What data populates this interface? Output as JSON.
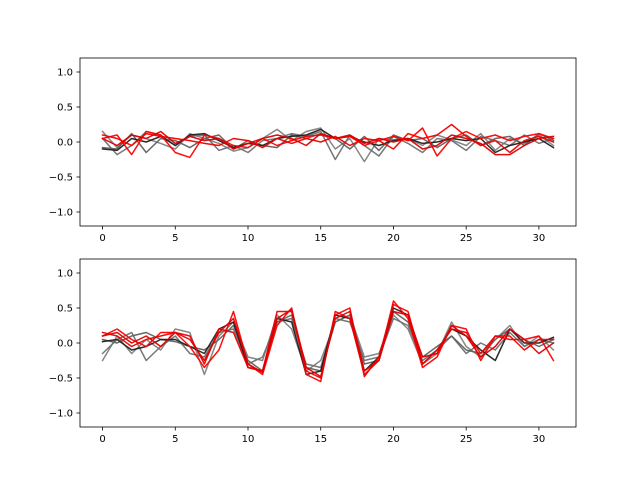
{
  "chart_data": [
    {
      "type": "line",
      "title": "",
      "xlabel": "",
      "ylabel": "",
      "xlim": [
        -1.55,
        32.55
      ],
      "ylim": [
        -1.2,
        1.2
      ],
      "xticks": [
        0,
        5,
        10,
        15,
        20,
        25,
        30
      ],
      "yticks": [
        -1.0,
        -0.5,
        0.0,
        0.5,
        1.0
      ],
      "x": [
        0,
        1,
        2,
        3,
        4,
        5,
        6,
        7,
        8,
        9,
        10,
        11,
        12,
        13,
        14,
        15,
        16,
        17,
        18,
        19,
        20,
        21,
        22,
        23,
        24,
        25,
        26,
        27,
        28,
        29,
        30,
        31
      ],
      "series": [
        {
          "color": "#808080",
          "values": [
            0.15,
            -0.08,
            0.1,
            0.05,
            -0.02,
            -0.1,
            0.12,
            0.05,
            -0.02,
            -0.13,
            -0.08,
            0.05,
            0.18,
            0.02,
            0.15,
            0.2,
            -0.1,
            0.05,
            -0.28,
            0.05,
            0.03,
            0.05,
            -0.05,
            0.1,
            0.03,
            -0.05,
            0.12,
            -0.12,
            0.05,
            -0.02,
            0.1,
            -0.05
          ]
        },
        {
          "color": "#707070",
          "values": [
            0.05,
            -0.18,
            -0.05,
            0.15,
            0.1,
            -0.05,
            0.08,
            0.1,
            -0.12,
            -0.05,
            -0.15,
            0.02,
            0.05,
            0.12,
            0.08,
            0.15,
            -0.25,
            0.1,
            -0.05,
            -0.2,
            0.08,
            -0.02,
            -0.15,
            0.05,
            0.02,
            -0.12,
            0.08,
            0.02,
            -0.05,
            0.1,
            -0.02,
            0.05
          ]
        },
        {
          "color": "#606060",
          "values": [
            -0.08,
            -0.1,
            0.12,
            -0.15,
            0.05,
            0.02,
            -0.08,
            0.05,
            0.1,
            -0.1,
            0.02,
            -0.05,
            -0.08,
            0.1,
            0.05,
            0.12,
            0.05,
            -0.1,
            0.08,
            -0.12,
            0.1,
            0.02,
            0.05,
            -0.08,
            0.05,
            0.1,
            -0.05,
            0.05,
            0.08,
            -0.05,
            0.12,
            0.02
          ]
        },
        {
          "color": "#202020",
          "values": [
            -0.1,
            -0.12,
            0.05,
            0.0,
            0.08,
            -0.05,
            0.1,
            0.12,
            0.02,
            -0.08,
            -0.02,
            -0.05,
            0.05,
            0.08,
            0.1,
            0.18,
            0.05,
            0.08,
            0.0,
            -0.05,
            0.02,
            0.05,
            -0.02,
            0.0,
            0.05,
            0.02,
            0.05,
            -0.15,
            -0.05,
            0.0,
            0.05,
            -0.08
          ]
        },
        {
          "color": "#ff0000",
          "values": [
            0.05,
            0.1,
            -0.18,
            0.15,
            0.1,
            -0.15,
            -0.22,
            0.1,
            0.05,
            -0.05,
            -0.08,
            0.05,
            -0.05,
            0.02,
            0.08,
            0.1,
            0.05,
            0.08,
            -0.05,
            0.02,
            0.08,
            0.02,
            0.2,
            -0.2,
            0.05,
            0.15,
            0.05,
            0.1,
            0.02,
            0.08,
            0.12,
            0.05
          ]
        },
        {
          "color": "#ee0000",
          "values": [
            0.1,
            0.05,
            -0.05,
            0.12,
            0.08,
            0.05,
            0.02,
            -0.02,
            -0.05,
            0.05,
            0.02,
            -0.08,
            0.05,
            -0.02,
            0.05,
            0.0,
            0.08,
            -0.05,
            0.05,
            0.02,
            -0.1,
            0.12,
            0.05,
            0.1,
            0.25,
            0.08,
            -0.05,
            0.02,
            -0.15,
            0.02,
            0.08,
            0.0
          ]
        },
        {
          "color": "#dd0000",
          "values": [
            0.05,
            -0.05,
            0.1,
            0.05,
            0.15,
            -0.02,
            0.08,
            0.02,
            0.05,
            -0.1,
            -0.02,
            0.05,
            0.1,
            0.05,
            -0.05,
            0.12,
            0.05,
            0.1,
            -0.02,
            0.05,
            0.0,
            0.05,
            -0.1,
            -0.05,
            0.1,
            0.05,
            -0.02,
            -0.18,
            -0.18,
            -0.05,
            0.05,
            0.08
          ]
        }
      ]
    },
    {
      "type": "line",
      "title": "",
      "xlabel": "",
      "ylabel": "",
      "xlim": [
        -1.55,
        32.55
      ],
      "ylim": [
        -1.2,
        1.2
      ],
      "xticks": [
        0,
        5,
        10,
        15,
        20,
        25,
        30
      ],
      "yticks": [
        -1.0,
        -0.5,
        0.0,
        0.5,
        1.0
      ],
      "x": [
        0,
        1,
        2,
        3,
        4,
        5,
        6,
        7,
        8,
        9,
        10,
        11,
        12,
        13,
        14,
        15,
        16,
        17,
        18,
        19,
        20,
        21,
        22,
        23,
        24,
        25,
        26,
        27,
        28,
        29,
        30,
        31
      ],
      "series": [
        {
          "color": "#808080",
          "values": [
            -0.25,
            0.1,
            -0.15,
            0.05,
            -0.1,
            0.2,
            0.15,
            -0.45,
            0.1,
            0.3,
            -0.2,
            -0.25,
            0.4,
            0.2,
            -0.4,
            -0.25,
            0.3,
            0.4,
            -0.2,
            -0.15,
            0.4,
            0.2,
            -0.3,
            -0.15,
            0.3,
            -0.05,
            -0.2,
            0.05,
            0.25,
            -0.05,
            0.1,
            -0.1
          ]
        },
        {
          "color": "#707070",
          "values": [
            -0.15,
            0.05,
            0.15,
            -0.25,
            -0.05,
            0.1,
            -0.15,
            -0.2,
            0.15,
            0.2,
            -0.3,
            -0.2,
            0.3,
            0.35,
            -0.3,
            -0.35,
            0.35,
            0.3,
            -0.25,
            -0.2,
            0.35,
            0.25,
            -0.25,
            -0.1,
            0.1,
            -0.15,
            0.0,
            -0.1,
            0.15,
            -0.05,
            0.05,
            0.0
          ]
        },
        {
          "color": "#606060",
          "values": [
            0.05,
            0.0,
            0.1,
            0.15,
            0.05,
            0.02,
            -0.05,
            -0.1,
            0.05,
            0.25,
            -0.25,
            -0.4,
            0.3,
            0.4,
            -0.35,
            -0.4,
            0.3,
            0.4,
            -0.3,
            -0.25,
            0.45,
            0.3,
            -0.2,
            -0.05,
            0.1,
            -0.1,
            -0.15,
            0.05,
            0.2,
            0.05,
            -0.05,
            0.05
          ]
        },
        {
          "color": "#202020",
          "values": [
            0.02,
            0.05,
            -0.1,
            -0.05,
            0.05,
            0.05,
            -0.05,
            -0.15,
            0.2,
            0.3,
            -0.35,
            -0.4,
            0.35,
            0.3,
            -0.45,
            -0.4,
            0.4,
            0.35,
            -0.4,
            -0.2,
            0.5,
            0.4,
            -0.3,
            -0.1,
            0.2,
            0.1,
            -0.1,
            -0.25,
            0.2,
            0.0,
            0.0,
            0.08
          ]
        },
        {
          "color": "#ff0000",
          "values": [
            0.1,
            0.2,
            0.05,
            -0.05,
            0.15,
            0.15,
            -0.05,
            -0.35,
            -0.1,
            0.45,
            -0.3,
            -0.45,
            0.25,
            0.5,
            -0.45,
            -0.55,
            0.45,
            0.35,
            -0.45,
            -0.25,
            0.6,
            0.35,
            -0.35,
            -0.2,
            0.25,
            0.2,
            -0.25,
            0.1,
            0.05,
            0.05,
            0.1,
            -0.25
          ]
        },
        {
          "color": "#ee0000",
          "values": [
            0.15,
            0.1,
            -0.05,
            0.05,
            0.1,
            0.15,
            0.1,
            -0.3,
            0.2,
            0.15,
            -0.35,
            -0.4,
            0.45,
            0.45,
            -0.4,
            -0.5,
            0.4,
            0.5,
            -0.48,
            -0.2,
            0.55,
            0.45,
            -0.3,
            -0.1,
            0.2,
            0.15,
            -0.15,
            0.1,
            0.1,
            -0.1,
            0.05,
            0.05
          ]
        },
        {
          "color": "#dd0000",
          "values": [
            0.1,
            0.15,
            0.0,
            0.1,
            -0.05,
            0.15,
            0.05,
            -0.25,
            0.15,
            0.35,
            -0.3,
            -0.42,
            0.35,
            0.48,
            -0.35,
            -0.48,
            0.35,
            0.45,
            -0.4,
            -0.25,
            0.45,
            0.4,
            -0.2,
            -0.15,
            0.25,
            0.1,
            -0.2,
            -0.05,
            0.2,
            0.05,
            -0.15,
            0.0
          ]
        }
      ]
    }
  ]
}
